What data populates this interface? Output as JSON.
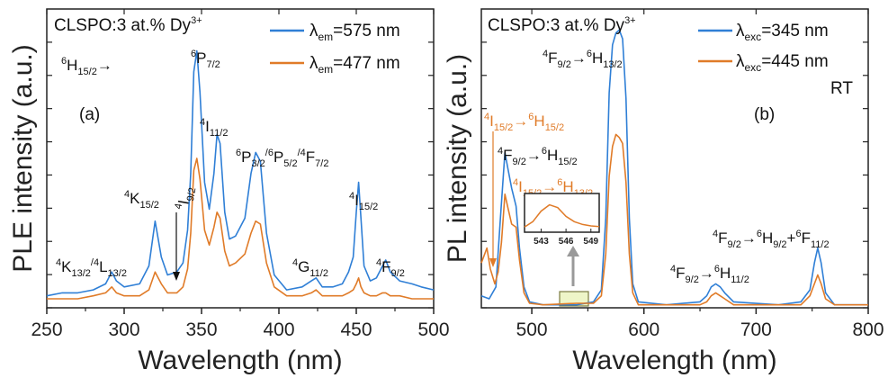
{
  "colors": {
    "blue": "#2f7fd6",
    "orange": "#e07b28",
    "axis": "#222222",
    "arrow": "#999999",
    "highlight": "#eef5c8"
  },
  "chart_data": [
    {
      "type": "line",
      "panel_label": "(a)",
      "sample": "CLSPO:3 at.% Dy",
      "sample_sup": "3+",
      "xlabel": "Wavelength (nm)",
      "ylabel": "PLE intensity (a.u.)",
      "xlim": [
        250,
        500
      ],
      "xticks": [
        250,
        300,
        350,
        400,
        450,
        500
      ],
      "ylim": [
        0,
        1.0
      ],
      "legend_position": "top-right",
      "series": [
        {
          "name_main": "λ",
          "name_sub": "em",
          "name_rest": "=575 nm",
          "color": "#2f7fd6",
          "points": [
            [
              250,
              0.04
            ],
            [
              260,
              0.05
            ],
            [
              270,
              0.05
            ],
            [
              280,
              0.06
            ],
            [
              288,
              0.08
            ],
            [
              292,
              0.12
            ],
            [
              295,
              0.09
            ],
            [
              300,
              0.07
            ],
            [
              310,
              0.08
            ],
            [
              316,
              0.14
            ],
            [
              320,
              0.29
            ],
            [
              324,
              0.17
            ],
            [
              328,
              0.11
            ],
            [
              334,
              0.12
            ],
            [
              338,
              0.15
            ],
            [
              341,
              0.26
            ],
            [
              343,
              0.45
            ],
            [
              345,
              0.79
            ],
            [
              347,
              0.86
            ],
            [
              349,
              0.72
            ],
            [
              352,
              0.42
            ],
            [
              355,
              0.33
            ],
            [
              358,
              0.45
            ],
            [
              360,
              0.58
            ],
            [
              362,
              0.55
            ],
            [
              365,
              0.32
            ],
            [
              368,
              0.23
            ],
            [
              372,
              0.24
            ],
            [
              378,
              0.3
            ],
            [
              382,
              0.45
            ],
            [
              385,
              0.52
            ],
            [
              388,
              0.49
            ],
            [
              392,
              0.25
            ],
            [
              397,
              0.11
            ],
            [
              405,
              0.06
            ],
            [
              415,
              0.07
            ],
            [
              421,
              0.09
            ],
            [
              424,
              0.1
            ],
            [
              428,
              0.07
            ],
            [
              435,
              0.07
            ],
            [
              441,
              0.08
            ],
            [
              445,
              0.12
            ],
            [
              448,
              0.17
            ],
            [
              450,
              0.32
            ],
            [
              451.5,
              0.42
            ],
            [
              453,
              0.3
            ],
            [
              455,
              0.14
            ],
            [
              459,
              0.09
            ],
            [
              463,
              0.1
            ],
            [
              467,
              0.14
            ],
            [
              469,
              0.16
            ],
            [
              472,
              0.12
            ],
            [
              478,
              0.09
            ],
            [
              486,
              0.08
            ],
            [
              492,
              0.07
            ],
            [
              500,
              0.06
            ]
          ]
        },
        {
          "name_main": "λ",
          "name_sub": "em",
          "name_rest": "=477 nm",
          "color": "#e07b28",
          "points": [
            [
              250,
              0.03
            ],
            [
              260,
              0.03
            ],
            [
              270,
              0.03
            ],
            [
              280,
              0.04
            ],
            [
              288,
              0.05
            ],
            [
              292,
              0.07
            ],
            [
              295,
              0.05
            ],
            [
              300,
              0.04
            ],
            [
              310,
              0.04
            ],
            [
              316,
              0.06
            ],
            [
              320,
              0.12
            ],
            [
              324,
              0.08
            ],
            [
              328,
              0.05
            ],
            [
              334,
              0.05
            ],
            [
              338,
              0.07
            ],
            [
              341,
              0.13
            ],
            [
              343,
              0.25
            ],
            [
              345,
              0.46
            ],
            [
              347,
              0.5
            ],
            [
              349,
              0.43
            ],
            [
              352,
              0.26
            ],
            [
              355,
              0.21
            ],
            [
              358,
              0.27
            ],
            [
              360,
              0.32
            ],
            [
              362,
              0.3
            ],
            [
              365,
              0.19
            ],
            [
              368,
              0.14
            ],
            [
              372,
              0.15
            ],
            [
              378,
              0.18
            ],
            [
              382,
              0.25
            ],
            [
              385,
              0.29
            ],
            [
              388,
              0.28
            ],
            [
              392,
              0.15
            ],
            [
              397,
              0.07
            ],
            [
              405,
              0.04
            ],
            [
              415,
              0.04
            ],
            [
              421,
              0.05
            ],
            [
              424,
              0.06
            ],
            [
              428,
              0.04
            ],
            [
              435,
              0.04
            ],
            [
              441,
              0.04
            ],
            [
              445,
              0.05
            ],
            [
              448,
              0.06
            ],
            [
              450,
              0.08
            ],
            [
              451.5,
              0.1
            ],
            [
              453,
              0.07
            ],
            [
              455,
              0.05
            ],
            [
              459,
              0.04
            ],
            [
              463,
              0.04
            ],
            [
              467,
              0.05
            ],
            [
              469,
              0.05
            ],
            [
              472,
              0.04
            ],
            [
              478,
              0.04
            ],
            [
              486,
              0.03
            ],
            [
              492,
              0.03
            ],
            [
              500,
              0.03
            ]
          ]
        }
      ],
      "annotations": {
        "h": {
          "main": "H",
          "pre": "6",
          "sub": "15/2",
          "post": "→"
        },
        "p72": {
          "pre": "6",
          "main": "P",
          "sub": "7/2"
        },
        "i112": {
          "pre": "4",
          "main": "I",
          "sub": "11/2"
        },
        "p32": {
          "pre1": "6",
          "m1": "P",
          "s1": "3/2",
          "pre2": "/6",
          "m2": "P",
          "s2": "5/2",
          "pre3": "/4",
          "m3": "F",
          "s3": "7/2"
        },
        "k152": {
          "pre": "4",
          "main": "K",
          "sub": "15/2"
        },
        "i92": {
          "pre": "4",
          "main": "I",
          "sub": "9/2"
        },
        "i152": {
          "pre": "4",
          "main": "I",
          "sub": "15/2"
        },
        "k132": {
          "pre1": "4",
          "m1": "K",
          "s1": "13/2",
          "pre2": "/4",
          "m2": "L",
          "s2": "13/2"
        },
        "g112": {
          "pre": "4",
          "main": "G",
          "sub": "11/2"
        },
        "f92": {
          "pre": "4",
          "main": "F",
          "sub": "9/2"
        }
      }
    },
    {
      "type": "line",
      "panel_label": "(b)",
      "sample": "CLSPO:3 at.% Dy",
      "sample_sup": "3+",
      "xlabel": "Wavelength (nm)",
      "ylabel": "PL intensity (a.u.)",
      "xlim": [
        455,
        800
      ],
      "xticks": [
        500,
        600,
        700,
        800
      ],
      "ylim": [
        0,
        1.0
      ],
      "legend_position": "top-right",
      "extra_legend_text": "RT",
      "series": [
        {
          "name_main": "λ",
          "name_sub": "exc",
          "name_rest": "=345 nm",
          "color": "#2f7fd6",
          "points": [
            [
              455,
              0.04
            ],
            [
              462,
              0.03
            ],
            [
              468,
              0.07
            ],
            [
              472,
              0.3
            ],
            [
              476,
              0.52
            ],
            [
              479,
              0.46
            ],
            [
              482,
              0.4
            ],
            [
              486,
              0.34
            ],
            [
              489,
              0.2
            ],
            [
              493,
              0.07
            ],
            [
              498,
              0.02
            ],
            [
              510,
              0.01
            ],
            [
              540,
              0.01
            ],
            [
              555,
              0.02
            ],
            [
              562,
              0.06
            ],
            [
              566,
              0.3
            ],
            [
              569,
              0.72
            ],
            [
              572,
              0.88
            ],
            [
              575,
              0.92
            ],
            [
              578,
              0.93
            ],
            [
              581,
              0.9
            ],
            [
              584,
              0.7
            ],
            [
              587,
              0.3
            ],
            [
              590,
              0.08
            ],
            [
              595,
              0.02
            ],
            [
              620,
              0.01
            ],
            [
              650,
              0.02
            ],
            [
              656,
              0.04
            ],
            [
              660,
              0.07
            ],
            [
              664,
              0.08
            ],
            [
              668,
              0.07
            ],
            [
              672,
              0.05
            ],
            [
              680,
              0.02
            ],
            [
              720,
              0.01
            ],
            [
              740,
              0.02
            ],
            [
              748,
              0.06
            ],
            [
              752,
              0.15
            ],
            [
              755,
              0.2
            ],
            [
              758,
              0.15
            ],
            [
              762,
              0.05
            ],
            [
              770,
              0.01
            ],
            [
              800,
              0.01
            ]
          ]
        },
        {
          "name_main": "λ",
          "name_sub": "exc",
          "name_rest": "=445 nm",
          "color": "#e07b28",
          "points": [
            [
              455,
              0.15
            ],
            [
              460,
              0.2
            ],
            [
              463,
              0.13
            ],
            [
              467,
              0.08
            ],
            [
              470,
              0.12
            ],
            [
              473,
              0.22
            ],
            [
              476,
              0.38
            ],
            [
              479,
              0.33
            ],
            [
              482,
              0.28
            ],
            [
              486,
              0.27
            ],
            [
              489,
              0.16
            ],
            [
              493,
              0.05
            ],
            [
              498,
              0.015
            ],
            [
              510,
              0.01
            ],
            [
              540,
              0.015
            ],
            [
              555,
              0.015
            ],
            [
              562,
              0.04
            ],
            [
              566,
              0.18
            ],
            [
              569,
              0.44
            ],
            [
              572,
              0.54
            ],
            [
              575,
              0.58
            ],
            [
              578,
              0.57
            ],
            [
              581,
              0.55
            ],
            [
              584,
              0.42
            ],
            [
              587,
              0.18
            ],
            [
              590,
              0.05
            ],
            [
              595,
              0.01
            ],
            [
              620,
              0.01
            ],
            [
              650,
              0.01
            ],
            [
              656,
              0.02
            ],
            [
              660,
              0.04
            ],
            [
              664,
              0.05
            ],
            [
              668,
              0.04
            ],
            [
              672,
              0.03
            ],
            [
              680,
              0.01
            ],
            [
              720,
              0.01
            ],
            [
              740,
              0.01
            ],
            [
              748,
              0.04
            ],
            [
              752,
              0.08
            ],
            [
              755,
              0.11
            ],
            [
              758,
              0.08
            ],
            [
              762,
              0.03
            ],
            [
              770,
              0.01
            ],
            [
              800,
              0.01
            ]
          ]
        }
      ],
      "inset": {
        "xticks": [
          543,
          546,
          549
        ],
        "xlim": [
          541,
          550
        ],
        "points": [
          [
            541,
            0.15
          ],
          [
            542,
            0.3
          ],
          [
            543,
            0.6
          ],
          [
            544,
            0.78
          ],
          [
            545,
            0.7
          ],
          [
            546,
            0.45
          ],
          [
            547,
            0.3
          ],
          [
            548,
            0.22
          ],
          [
            549,
            0.18
          ],
          [
            550,
            0.16
          ]
        ]
      },
      "annotations": {
        "orange_i152": {
          "pre": "4",
          "main": "I",
          "sub": "15/2",
          "arrow": "→",
          "pre2": "6",
          "main2": "H",
          "sub2": "15/2"
        },
        "f92_h152": {
          "pre": "4",
          "main": "F",
          "sub": "9/2",
          "arrow": "→",
          "pre2": "6",
          "main2": "H",
          "sub2": "15/2"
        },
        "orange_i152_h132": {
          "pre": "4",
          "main": "I",
          "sub": "15/2",
          "arrow": "→",
          "pre2": "6",
          "main2": "H",
          "sub2": "13/2"
        },
        "f92_h132": {
          "pre": "4",
          "main": "F",
          "sub": "9/2",
          "arrow": "→",
          "pre2": "6",
          "main2": "H",
          "sub2": "13/2"
        },
        "f92_h112": {
          "pre": "4",
          "main": "F",
          "sub": "9/2",
          "arrow": "→",
          "pre2": "6",
          "main2": "H",
          "sub2": "11/2"
        },
        "f92_h92": {
          "pre": "4",
          "main": "F",
          "sub": "9/2",
          "arrow": "→",
          "pre2": "6",
          "main2": "H",
          "sub2": "9/2",
          "plus": "+",
          "pre3": "6",
          "main3": "F",
          "sub3": "11/2"
        }
      }
    }
  ]
}
